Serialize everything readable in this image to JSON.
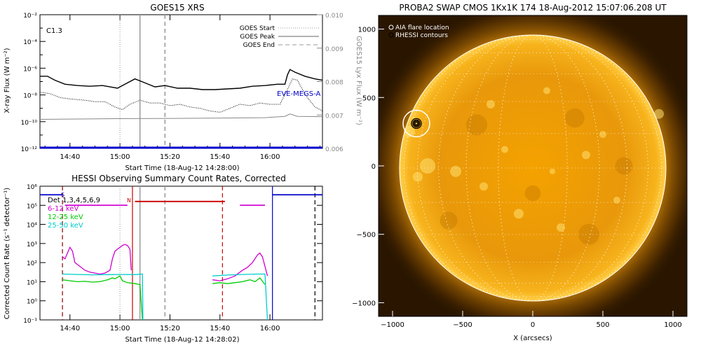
{
  "colors": {
    "goes_long": "#000000",
    "goes_short": "#000000",
    "lyx": "#888888",
    "eve": "#0000cc",
    "hessi_det": "#000000",
    "band_6_12": "#d000d0",
    "band_12_25": "#00cc00",
    "band_25_50": "#00cccc",
    "flag_red": "#cc0000",
    "flag_blue": "#0000cc",
    "sun_core": "#f7a800",
    "sun_edge": "#b87400",
    "sky": "#2a1600"
  },
  "chart_data": [
    {
      "type": "line",
      "title": "GOES15 XRS",
      "xlabel": "Start Time (18-Aug-12 14:28:00)",
      "ylabel": "X-ray Flux (W m⁻²)",
      "y2label": "GOES15 Lyx Flux (W m⁻²)",
      "x_range_minutes": [
        0,
        113
      ],
      "x_ticks": [
        {
          "label": "14:40",
          "min": 12
        },
        {
          "label": "15:00",
          "min": 32
        },
        {
          "label": "15:20",
          "min": 52
        },
        {
          "label": "15:40",
          "min": 72
        },
        {
          "label": "16:00",
          "min": 92
        }
      ],
      "ylim_log10": [
        -12,
        -2
      ],
      "y_tick_labels": [
        "10⁻¹²",
        "10⁻¹⁰",
        "10⁻⁸",
        "10⁻⁶",
        "10⁻⁴",
        "10⁻²"
      ],
      "y2lim": [
        0.006,
        0.01
      ],
      "y2_tick_labels": [
        "0.006",
        "0.007",
        "0.008",
        "0.009",
        "0.010"
      ],
      "class_label": "C1.3",
      "legend": {
        "position": "top-right",
        "entries": [
          {
            "name": "GOES Start",
            "style": "dotted"
          },
          {
            "name": "GOES Peak",
            "style": "solid"
          },
          {
            "name": "GOES End",
            "style": "dashed"
          }
        ]
      },
      "event_lines_min": {
        "start": 32,
        "peak": 40,
        "end": 50
      },
      "eve_label": "EVE-MEGS-A",
      "series": [
        {
          "name": "long",
          "log10_flux": [
            [
              0,
              -6.6
            ],
            [
              3,
              -6.6
            ],
            [
              6,
              -6.9
            ],
            [
              10,
              -7.2
            ],
            [
              15,
              -7.3
            ],
            [
              20,
              -7.35
            ],
            [
              25,
              -7.3
            ],
            [
              28,
              -7.4
            ],
            [
              31,
              -7.5
            ],
            [
              34,
              -7.2
            ],
            [
              38,
              -6.8
            ],
            [
              42,
              -7.1
            ],
            [
              46,
              -7.4
            ],
            [
              50,
              -7.3
            ],
            [
              55,
              -7.5
            ],
            [
              60,
              -7.5
            ],
            [
              65,
              -7.6
            ],
            [
              70,
              -7.6
            ],
            [
              75,
              -7.55
            ],
            [
              80,
              -7.5
            ],
            [
              85,
              -7.35
            ],
            [
              90,
              -7.3
            ],
            [
              95,
              -7.2
            ],
            [
              98,
              -7.2
            ],
            [
              99,
              -6.5
            ],
            [
              100,
              -6.1
            ],
            [
              102,
              -6.3
            ],
            [
              106,
              -6.6
            ],
            [
              110,
              -6.8
            ],
            [
              113,
              -6.9
            ]
          ]
        },
        {
          "name": "short",
          "log10_flux": [
            [
              0,
              -7.8
            ],
            [
              4,
              -7.9
            ],
            [
              8,
              -8.2
            ],
            [
              12,
              -8.3
            ],
            [
              18,
              -8.4
            ],
            [
              22,
              -8.5
            ],
            [
              26,
              -8.5
            ],
            [
              30,
              -8.9
            ],
            [
              33,
              -9.1
            ],
            [
              36,
              -8.7
            ],
            [
              40,
              -8.4
            ],
            [
              44,
              -8.6
            ],
            [
              48,
              -8.6
            ],
            [
              52,
              -8.8
            ],
            [
              56,
              -8.7
            ],
            [
              60,
              -8.9
            ],
            [
              64,
              -9.0
            ],
            [
              68,
              -9.2
            ],
            [
              72,
              -9.3
            ],
            [
              76,
              -9.0
            ],
            [
              80,
              -8.7
            ],
            [
              84,
              -8.8
            ],
            [
              88,
              -8.6
            ],
            [
              92,
              -8.7
            ],
            [
              96,
              -8.7
            ],
            [
              99,
              -7.6
            ],
            [
              101,
              -6.8
            ],
            [
              103,
              -6.9
            ],
            [
              105,
              -7.6
            ],
            [
              107,
              -8.2
            ],
            [
              110,
              -8.9
            ],
            [
              113,
              -9.2
            ]
          ]
        },
        {
          "name": "lyx",
          "flux": [
            [
              0,
              0.00687
            ],
            [
              30,
              0.00689
            ],
            [
              60,
              0.0069
            ],
            [
              90,
              0.00692
            ],
            [
              98,
              0.00696
            ],
            [
              100,
              0.00703
            ],
            [
              103,
              0.00696
            ],
            [
              113,
              0.00695
            ]
          ]
        },
        {
          "name": "eve",
          "log10_flux": [
            [
              0,
              -11.95
            ],
            [
              113,
              -11.95
            ]
          ]
        }
      ]
    },
    {
      "type": "line",
      "title": "HESSI Observing Summary Count Rates, Corrected",
      "xlabel": "Start Time (18-Aug-12 14:28:02)",
      "ylabel": "Corrected Count Rate (s⁻¹ detector⁻¹)",
      "x_range_minutes": [
        0,
        113
      ],
      "x_ticks": [
        {
          "label": "14:40",
          "min": 12
        },
        {
          "label": "15:00",
          "min": 32
        },
        {
          "label": "15:20",
          "min": 52
        },
        {
          "label": "15:40",
          "min": 72
        },
        {
          "label": "16:00",
          "min": 92
        }
      ],
      "ylim_log10": [
        -1,
        6
      ],
      "y_tick_labels": [
        "10⁻¹",
        "10⁰",
        "10¹",
        "10²",
        "10³",
        "10⁴",
        "10⁵",
        "10⁶"
      ],
      "legend_title": "Det 1,3,4,5,6,9",
      "event_lines_min": {
        "start": 32,
        "peak": 40,
        "end": 50
      },
      "flag_labels": {
        "s": "S",
        "n": "N"
      },
      "series": [
        {
          "name": "6-12 keV",
          "log10_rate": [
            [
              9,
              2.3
            ],
            [
              10,
              2.2
            ],
            [
              11,
              2.5
            ],
            [
              12,
              2.8
            ],
            [
              13,
              2.6
            ],
            [
              14,
              2.0
            ],
            [
              16,
              1.8
            ],
            [
              18,
              1.6
            ],
            [
              20,
              1.5
            ],
            [
              22,
              1.45
            ],
            [
              24,
              1.4
            ],
            [
              26,
              1.45
            ],
            [
              28,
              1.6
            ],
            [
              29,
              2.2
            ],
            [
              30,
              2.6
            ],
            [
              31,
              2.7
            ],
            [
              32,
              2.8
            ],
            [
              33,
              2.9
            ],
            [
              34,
              2.95
            ],
            [
              35,
              2.9
            ],
            [
              36,
              2.7
            ],
            [
              36.5,
              1.6
            ]
          ]
        },
        {
          "name": "12-25 keV",
          "log10_rate": [
            [
              9,
              1.1
            ],
            [
              12,
              1.05
            ],
            [
              15,
              1.0
            ],
            [
              18,
              1.02
            ],
            [
              21,
              0.98
            ],
            [
              24,
              1.0
            ],
            [
              27,
              1.1
            ],
            [
              29,
              1.2
            ],
            [
              30,
              1.15
            ],
            [
              32,
              1.3
            ],
            [
              33,
              1.05
            ],
            [
              35,
              0.95
            ],
            [
              38,
              0.9
            ],
            [
              40,
              0.85
            ],
            [
              41,
              -1.0
            ]
          ]
        },
        {
          "name": "25-50 keV",
          "log10_rate": [
            [
              9,
              1.4
            ],
            [
              15,
              1.38
            ],
            [
              21,
              1.36
            ],
            [
              27,
              1.37
            ],
            [
              33,
              1.38
            ],
            [
              38,
              1.37
            ],
            [
              41,
              1.4
            ],
            [
              41.2,
              -1.0
            ]
          ]
        },
        {
          "name": "6-12 keV",
          "log10_rate": [
            [
              69,
              1.1
            ],
            [
              72,
              1.05
            ],
            [
              75,
              1.15
            ],
            [
              78,
              1.3
            ],
            [
              81,
              1.6
            ],
            [
              83,
              1.75
            ],
            [
              85,
              2.0
            ],
            [
              87,
              2.4
            ],
            [
              88,
              2.5
            ],
            [
              89,
              2.3
            ],
            [
              90,
              1.8
            ],
            [
              91,
              1.3
            ]
          ]
        },
        {
          "name": "12-25 keV",
          "log10_rate": [
            [
              69,
              0.9
            ],
            [
              72,
              0.95
            ],
            [
              75,
              0.9
            ],
            [
              78,
              0.95
            ],
            [
              81,
              1.0
            ],
            [
              84,
              1.1
            ],
            [
              86,
              1.0
            ],
            [
              88,
              1.2
            ],
            [
              90,
              0.85
            ]
          ]
        },
        {
          "name": "25-50 keV",
          "log10_rate": [
            [
              69,
              1.3
            ],
            [
              75,
              1.35
            ],
            [
              81,
              1.38
            ],
            [
              87,
              1.4
            ],
            [
              90,
              1.4
            ],
            [
              91,
              -1.0
            ]
          ]
        }
      ],
      "flag_bars": [
        {
          "color": "flag_blue",
          "from": 0,
          "to": 9,
          "log10": 5.55
        },
        {
          "color": "band_6_12",
          "from": 10,
          "to": 35,
          "log10": 5.0
        },
        {
          "color": "flag_red",
          "from": 38,
          "to": 74,
          "log10": 5.2
        },
        {
          "color": "band_6_12",
          "from": 80,
          "to": 90,
          "log10": 5.0
        },
        {
          "color": "flag_blue",
          "from": 93,
          "to": 113,
          "log10": 5.55
        }
      ],
      "night_lines_min": [
        {
          "min": 9,
          "color": "#880000",
          "style": "dashed"
        },
        {
          "min": 37,
          "color": "#cc0000",
          "style": "solid"
        },
        {
          "min": 73,
          "color": "#cc0000",
          "style": "dashed"
        },
        {
          "min": 93,
          "color": "#0000cc",
          "style": "solid"
        },
        {
          "min": 110,
          "color": "#000",
          "style": "dashed"
        }
      ]
    },
    {
      "type": "image",
      "title": "PROBA2 SWAP CMOS 1Kx1K 174 18-Aug-2012 15:07:06.208 UT",
      "xlabel": "X (arcsecs)",
      "xlim": [
        -1100,
        1100
      ],
      "ylim": [
        -1100,
        1100
      ],
      "x_ticks": [
        -1000,
        -500,
        0,
        500,
        1000
      ],
      "y_ticks": [
        -1000,
        -500,
        0,
        500,
        1000
      ],
      "legend": {
        "position": "top-left",
        "entries": [
          "AIA flare location",
          "RHESSI contours"
        ]
      },
      "flare_location_arcsec": [
        -830,
        310
      ],
      "solar_radius_arcsec": 945
    }
  ]
}
